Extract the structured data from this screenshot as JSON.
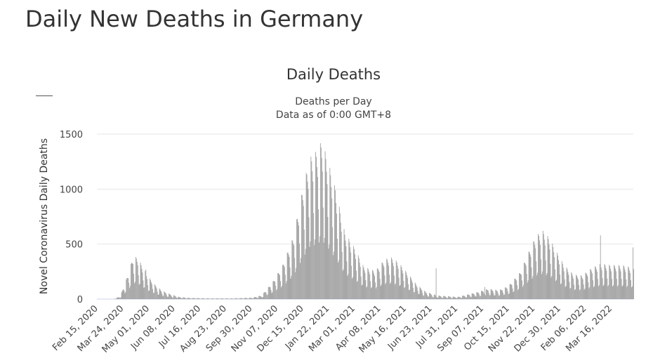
{
  "page": {
    "title": "Daily New Deaths in Germany"
  },
  "chart_data": {
    "type": "bar",
    "title": "Daily Deaths",
    "subtitle_lines": [
      "Deaths per Day",
      "Data as of 0:00 GMT+8"
    ],
    "ylabel": "Novel Coronavirus Daily Deaths",
    "xlabel": "",
    "ylim": [
      0,
      1500
    ],
    "yticks": [
      "0",
      "500",
      "1000",
      "1500"
    ],
    "grid": true,
    "bar_color": "#999999",
    "x_range": [
      "2020-02-15",
      "2022-04-18"
    ],
    "xticks": [
      "Feb 15, 2020",
      "Mar 24, 2020",
      "May 01, 2020",
      "Jun 08, 2020",
      "Jul 16, 2020",
      "Aug 23, 2020",
      "Sep 30, 2020",
      "Nov 07, 2020",
      "Dec 15, 2020",
      "Jan 22, 2021",
      "Mar 01, 2021",
      "Apr 08, 2021",
      "May 16, 2021",
      "Jun 23, 2021",
      "Jul 31, 2021",
      "Sep 07, 2021",
      "Oct 15, 2021",
      "Nov 22, 2021",
      "Dec 30, 2021",
      "Feb 06, 2022",
      "Mar 16, 2022"
    ],
    "series_points": [
      [
        "2020-02-15",
        0
      ],
      [
        "2020-03-10",
        0
      ],
      [
        "2020-03-20",
        20
      ],
      [
        "2020-03-28",
        120
      ],
      [
        "2020-04-03",
        200
      ],
      [
        "2020-04-08",
        290
      ],
      [
        "2020-04-15",
        280
      ],
      [
        "2020-04-22",
        220
      ],
      [
        "2020-05-01",
        150
      ],
      [
        "2020-05-10",
        100
      ],
      [
        "2020-05-20",
        60
      ],
      [
        "2020-06-01",
        35
      ],
      [
        "2020-06-15",
        15
      ],
      [
        "2020-07-01",
        8
      ],
      [
        "2020-08-01",
        5
      ],
      [
        "2020-09-01",
        5
      ],
      [
        "2020-10-01",
        10
      ],
      [
        "2020-10-15",
        25
      ],
      [
        "2020-11-01",
        120
      ],
      [
        "2020-11-15",
        230
      ],
      [
        "2020-12-01",
        420
      ],
      [
        "2020-12-15",
        750
      ],
      [
        "2020-12-25",
        950
      ],
      [
        "2021-01-05",
        1000
      ],
      [
        "2021-01-12",
        1070
      ],
      [
        "2021-01-20",
        950
      ],
      [
        "2021-02-01",
        750
      ],
      [
        "2021-02-15",
        450
      ],
      [
        "2021-03-01",
        350
      ],
      [
        "2021-03-15",
        220
      ],
      [
        "2021-04-01",
        190
      ],
      [
        "2021-04-15",
        270
      ],
      [
        "2021-04-25",
        280
      ],
      [
        "2021-05-05",
        250
      ],
      [
        "2021-05-20",
        170
      ],
      [
        "2021-06-01",
        100
      ],
      [
        "2021-06-15",
        50
      ],
      [
        "2021-07-01",
        25
      ],
      [
        "2021-08-01",
        15
      ],
      [
        "2021-09-01",
        50
      ],
      [
        "2021-09-15",
        70
      ],
      [
        "2021-10-01",
        60
      ],
      [
        "2021-10-15",
        90
      ],
      [
        "2021-11-01",
        180
      ],
      [
        "2021-11-15",
        330
      ],
      [
        "2021-11-25",
        430
      ],
      [
        "2021-12-05",
        460
      ],
      [
        "2021-12-15",
        410
      ],
      [
        "2021-12-25",
        320
      ],
      [
        "2022-01-05",
        230
      ],
      [
        "2022-01-20",
        165
      ],
      [
        "2022-02-01",
        160
      ],
      [
        "2022-02-15",
        210
      ],
      [
        "2022-03-01",
        240
      ],
      [
        "2022-03-15",
        230
      ],
      [
        "2022-04-01",
        230
      ],
      [
        "2022-04-18",
        210
      ]
    ],
    "spikes": [
      [
        "2022-02-28",
        580
      ],
      [
        "2022-04-17",
        470
      ],
      [
        "2021-02-01",
        990
      ],
      [
        "2020-04-27",
        270
      ],
      [
        "2021-06-30",
        280
      ],
      [
        "2021-09-10",
        110
      ]
    ]
  }
}
